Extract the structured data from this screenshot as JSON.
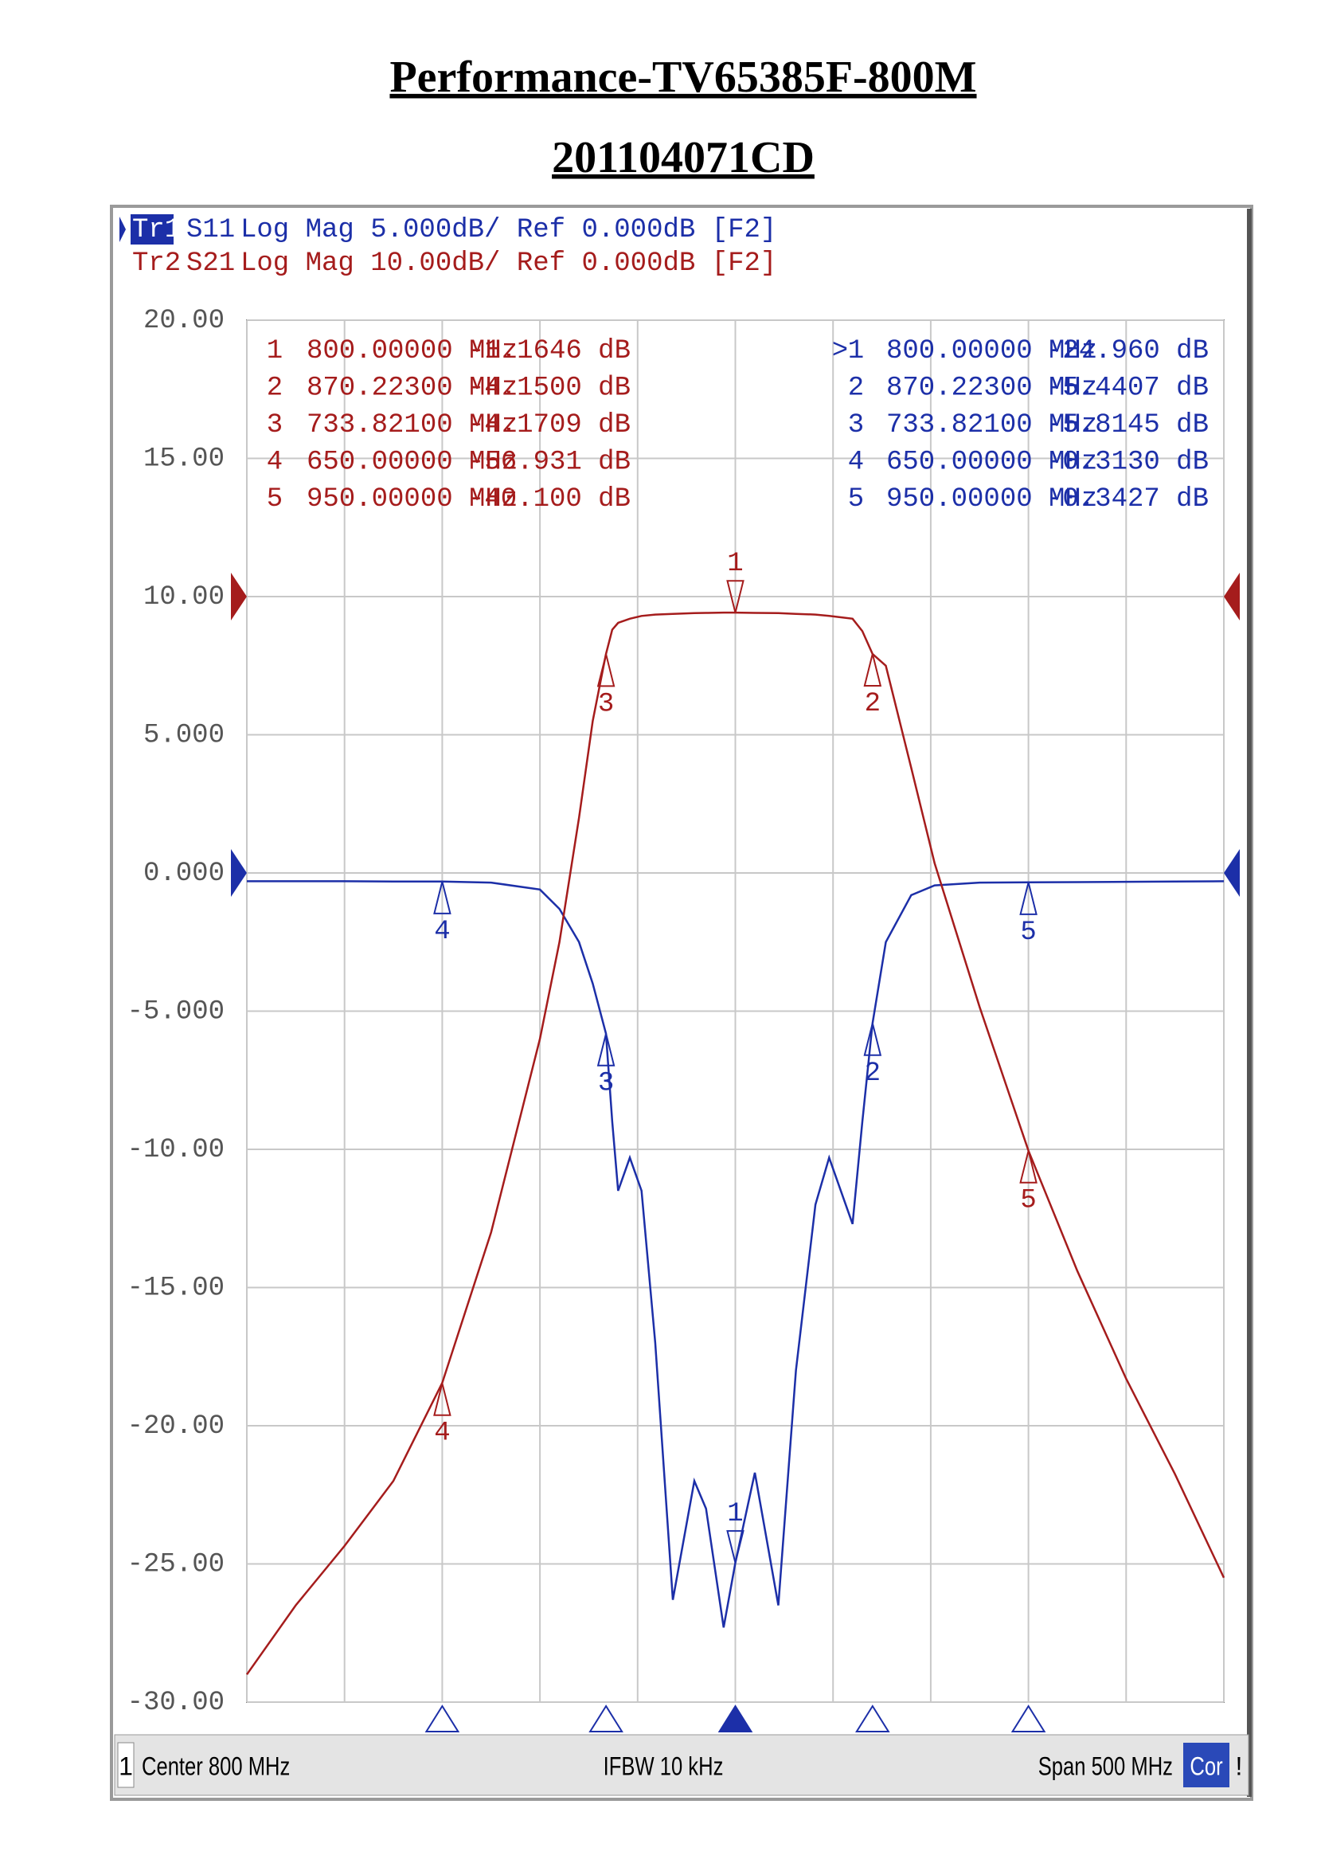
{
  "chart_data": {
    "type": "line",
    "title": "Performance-TV65385F-800M",
    "subtitle": "201104071CD",
    "xlim": [
      550,
      1050
    ],
    "xticks": [
      550,
      600,
      650,
      700,
      750,
      800,
      850,
      900,
      950,
      1000,
      1050
    ],
    "ylim": [
      -30,
      20
    ],
    "yticks": [
      {
        "value": 20,
        "label": "20.00"
      },
      {
        "value": 15,
        "label": "15.00"
      },
      {
        "value": 10,
        "label": "10.00"
      },
      {
        "value": 5,
        "label": "5.000"
      },
      {
        "value": 0,
        "label": "0.000"
      },
      {
        "value": -5,
        "label": "-5.000"
      },
      {
        "value": -10,
        "label": "-10.00"
      },
      {
        "value": -15,
        "label": "-15.00"
      },
      {
        "value": -20,
        "label": "-20.00"
      },
      {
        "value": -25,
        "label": "-25.00"
      },
      {
        "value": -30,
        "label": "-30.00"
      }
    ],
    "y2lim": [
      -80,
      20
    ],
    "grid": true,
    "marker_numbers": [
      "1",
      "2",
      "3",
      "4",
      "5"
    ],
    "active_marker_symbol": ">",
    "x": [
      550,
      575,
      600,
      625,
      650,
      675,
      700,
      710,
      720,
      727,
      733.8,
      737,
      740,
      746,
      752,
      759,
      768,
      779,
      785,
      794,
      800,
      810,
      822,
      831,
      841,
      848,
      860,
      865,
      870.2,
      877,
      890,
      902,
      925,
      950,
      975,
      1000,
      1025,
      1050
    ],
    "series": [
      {
        "trace": "Tr1",
        "name": "S11",
        "format": "Log Mag 5.000dB/ Ref 0.000dB [F2]",
        "color": "#1c2fa8",
        "axis": "y",
        "values": [
          -0.3,
          -0.3,
          -0.3,
          -0.31,
          -0.31,
          -0.35,
          -0.6,
          -1.3,
          -2.5,
          -4,
          -5.81,
          -9,
          -11.5,
          -10.3,
          -11.5,
          -17,
          -26.3,
          -22,
          -23,
          -27.3,
          -24.96,
          -21.7,
          -26.5,
          -18,
          -12,
          -10.3,
          -12.7,
          -9,
          -5.44,
          -2.5,
          -0.8,
          -0.45,
          -0.35,
          -0.34,
          -0.33,
          -0.32,
          -0.31,
          -0.3
        ],
        "markers": {
          "x": [
            800,
            870.223,
            733.821,
            650,
            950
          ],
          "values": [
            -24.96,
            -5.4407,
            -5.8145,
            -0.313,
            -0.3427
          ],
          "x_labels": [
            "800.00000 MHz",
            "870.22300 MHz",
            "733.82100 MHz",
            "650.00000 MHz",
            "950.00000 MHz"
          ],
          "value_labels": [
            "-24.960 dB",
            "-5.4407 dB",
            "-5.8145 dB",
            "-0.3130 dB",
            "-0.3427 dB"
          ]
        }
      },
      {
        "trace": "Tr2",
        "name": "S21",
        "format": "Log Mag 10.00dB/ Ref 0.000dB [F2]",
        "color": "#a51c1c",
        "axis": "y2",
        "values": [
          -78,
          -73,
          -68.7,
          -64,
          -56.9,
          -46,
          -32,
          -25,
          -16,
          -9,
          -4.17,
          -2.4,
          -1.9,
          -1.6,
          -1.4,
          -1.3,
          -1.25,
          -1.2,
          -1.18,
          -1.16,
          -1.16,
          -1.18,
          -1.2,
          -1.25,
          -1.3,
          -1.4,
          -1.6,
          -2.5,
          -4.15,
          -5,
          -12.4,
          -19.3,
          -29.7,
          -40.1,
          -48.8,
          -56.6,
          -63.5,
          -71
        ],
        "markers": {
          "x": [
            800,
            870.223,
            733.821,
            650,
            950
          ],
          "values": [
            -1.1646,
            -4.15,
            -4.1709,
            -56.931,
            -40.1
          ],
          "x_labels": [
            "800.00000 MHz",
            "870.22300 MHz",
            "733.82100 MHz",
            "650.00000 MHz",
            "950.00000 MHz"
          ],
          "value_labels": [
            "-1.1646 dB",
            "-4.1500 dB",
            "-4.1709 dB",
            "-56.931 dB",
            "-40.100 dB"
          ]
        }
      }
    ],
    "footer": {
      "channel": "1",
      "center": "Center 800 MHz",
      "ifbw": "IFBW 10 kHz",
      "span": "Span 500 MHz",
      "correction": "Cor",
      "status": "!"
    }
  }
}
